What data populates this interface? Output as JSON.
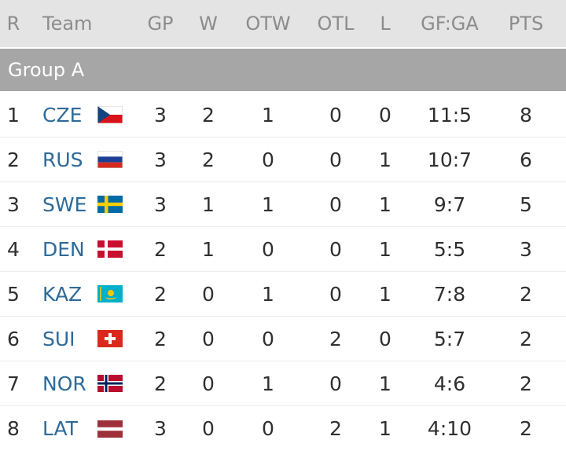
{
  "headers": {
    "r": "R",
    "team": "Team",
    "gp": "GP",
    "w": "W",
    "otw": "OTW",
    "otl": "OTL",
    "l": "L",
    "gfga": "GF:GA",
    "pts": "PTS"
  },
  "group_title": "Group A",
  "rows": [
    {
      "r": "1",
      "team": "CZE",
      "flag": "czech-flag-icon",
      "gp": "3",
      "w": "2",
      "otw": "1",
      "otl": "0",
      "l": "0",
      "gfga": "11:5",
      "pts": "8"
    },
    {
      "r": "2",
      "team": "RUS",
      "flag": "russia-flag-icon",
      "gp": "3",
      "w": "2",
      "otw": "0",
      "otl": "0",
      "l": "1",
      "gfga": "10:7",
      "pts": "6"
    },
    {
      "r": "3",
      "team": "SWE",
      "flag": "sweden-flag-icon",
      "gp": "3",
      "w": "1",
      "otw": "1",
      "otl": "0",
      "l": "1",
      "gfga": "9:7",
      "pts": "5"
    },
    {
      "r": "4",
      "team": "DEN",
      "flag": "denmark-flag-icon",
      "gp": "2",
      "w": "1",
      "otw": "0",
      "otl": "0",
      "l": "1",
      "gfga": "5:5",
      "pts": "3"
    },
    {
      "r": "5",
      "team": "KAZ",
      "flag": "kazakhstan-flag-icon",
      "gp": "2",
      "w": "0",
      "otw": "1",
      "otl": "0",
      "l": "1",
      "gfga": "7:8",
      "pts": "2"
    },
    {
      "r": "6",
      "team": "SUI",
      "flag": "switzerland-flag-icon",
      "gp": "2",
      "w": "0",
      "otw": "0",
      "otl": "2",
      "l": "0",
      "gfga": "5:7",
      "pts": "2"
    },
    {
      "r": "7",
      "team": "NOR",
      "flag": "norway-flag-icon",
      "gp": "2",
      "w": "0",
      "otw": "1",
      "otl": "0",
      "l": "1",
      "gfga": "4:6",
      "pts": "2"
    },
    {
      "r": "8",
      "team": "LAT",
      "flag": "latvia-flag-icon",
      "gp": "3",
      "w": "0",
      "otw": "0",
      "otl": "2",
      "l": "1",
      "gfga": "4:10",
      "pts": "2"
    }
  ],
  "colors": {
    "header_bg": "#e4e4e4",
    "header_text": "#8c8c8c",
    "group_bg": "#a6a6a6",
    "team_link": "#2e6a99"
  }
}
